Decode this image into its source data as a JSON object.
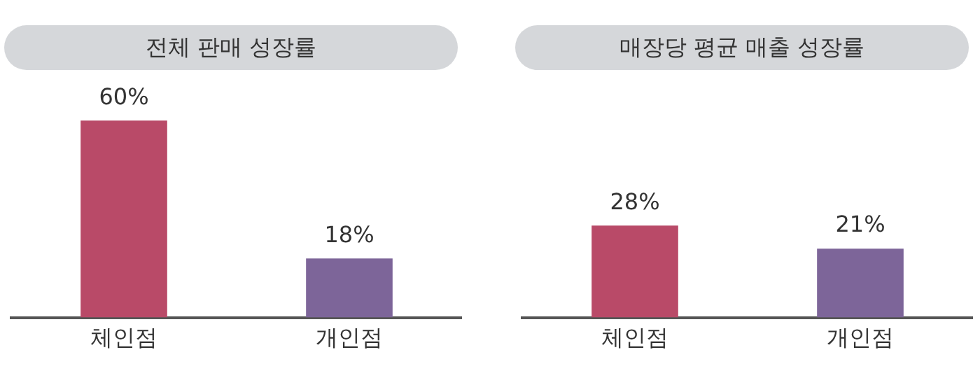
{
  "chart_data": [
    {
      "type": "bar",
      "title": "전체 판매 성장률",
      "categories": [
        "체인점",
        "개인점"
      ],
      "values": [
        60,
        18
      ],
      "colors": [
        "#b94a68",
        "#7d6599"
      ],
      "value_labels": [
        "60%",
        "18%"
      ],
      "tick_labels": "x",
      "grid": false,
      "legend": false
    },
    {
      "type": "bar",
      "title": "매장당 평균 매출 성장률",
      "categories": [
        "체인점",
        "개인점"
      ],
      "values": [
        28,
        21
      ],
      "colors": [
        "#b94a68",
        "#7d6599"
      ],
      "value_labels": [
        "28%",
        "21%"
      ],
      "tick_labels": "x",
      "grid": false,
      "legend": false
    }
  ]
}
